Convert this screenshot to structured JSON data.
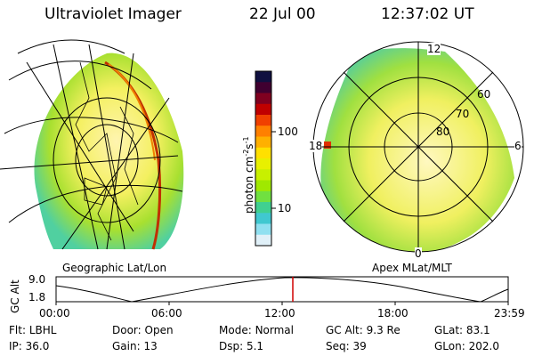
{
  "header": {
    "instrument": "Ultraviolet Imager",
    "date": "22 Jul 00",
    "time": "12:37:02 UT"
  },
  "left_panel": {
    "caption": "Geographic Lat/Lon"
  },
  "right_panel": {
    "caption": "Apex MLat/MLT",
    "mlt_labels": [
      "12",
      "18",
      "6",
      "0"
    ],
    "lat_labels": [
      "60",
      "70",
      "80"
    ]
  },
  "colorbar": {
    "unit_text": "photon cm",
    "unit_exp1": "-2",
    "unit_mid": "s",
    "unit_exp2": "-1",
    "tick_labels": [
      "100",
      "10"
    ],
    "colors": [
      "#101040",
      "#400030",
      "#800020",
      "#c00000",
      "#f04000",
      "#ff8000",
      "#ffb000",
      "#ffe000",
      "#e8f000",
      "#c8f000",
      "#a0e800",
      "#70e040",
      "#40d090",
      "#40c8d0",
      "#90e0f0",
      "#e0f0f8"
    ]
  },
  "altitude_plot": {
    "ylabel": "GC Alt",
    "y_top": "9.0",
    "y_bottom": "1.8",
    "x_ticks": [
      "00:00",
      "06:00",
      "12:00",
      "18:00",
      "23:59"
    ],
    "marker_color": "#d00000"
  },
  "footer": {
    "row1": [
      {
        "label": "Flt:",
        "value": "LBHL"
      },
      {
        "label": "Door:",
        "value": "Open"
      },
      {
        "label": "Mode:",
        "value": "Normal"
      },
      {
        "label": "GC Alt:",
        "value": "9.3 Re"
      },
      {
        "label": "GLat:",
        "value": "83.1"
      }
    ],
    "row2": [
      {
        "label": "IP:",
        "value": "36.0"
      },
      {
        "label": "Gain:",
        "value": "13"
      },
      {
        "label": "Dsp:",
        "value": "5.1"
      },
      {
        "label": "Seq:",
        "value": "39"
      },
      {
        "label": "GLon:",
        "value": "202.0"
      }
    ]
  }
}
